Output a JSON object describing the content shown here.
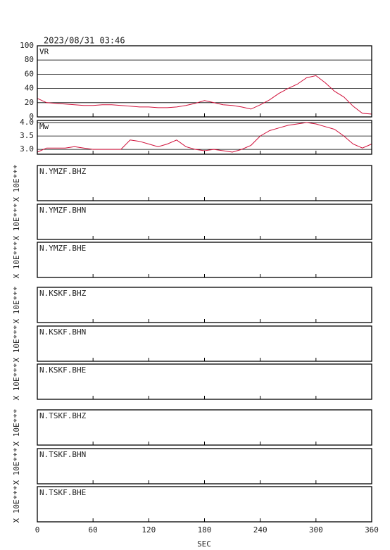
{
  "title": "2023/08/31 03:46",
  "x_axis": {
    "label": "SEC",
    "xlim": [
      0,
      360
    ],
    "xticks": [
      0,
      60,
      120,
      180,
      240,
      300,
      360
    ]
  },
  "chart_data": [
    {
      "type": "line",
      "label": "VR",
      "x": [
        0,
        10,
        20,
        30,
        40,
        50,
        60,
        70,
        80,
        90,
        100,
        110,
        120,
        130,
        140,
        150,
        160,
        170,
        180,
        190,
        200,
        210,
        220,
        230,
        240,
        250,
        260,
        270,
        280,
        290,
        300,
        310,
        320,
        330,
        340,
        350,
        360
      ],
      "series": [
        {
          "color": "#d0103a",
          "values": [
            26,
            20,
            19,
            18,
            17,
            16,
            16,
            17,
            17,
            16,
            15,
            14,
            14,
            13,
            13,
            14,
            16,
            19,
            23,
            20,
            17,
            16,
            14,
            11,
            17,
            24,
            33,
            40,
            46,
            55,
            58,
            48,
            36,
            28,
            15,
            5,
            4
          ]
        }
      ],
      "ylim": [
        0,
        100
      ],
      "yticks": [
        0,
        20,
        40,
        60,
        80,
        100
      ],
      "grid": true
    },
    {
      "type": "line",
      "label": "Mw",
      "x": [
        0,
        10,
        20,
        30,
        40,
        50,
        60,
        70,
        80,
        90,
        100,
        110,
        120,
        130,
        140,
        150,
        160,
        170,
        180,
        190,
        200,
        210,
        220,
        230,
        240,
        250,
        260,
        270,
        280,
        290,
        300,
        310,
        320,
        330,
        340,
        350,
        360
      ],
      "series": [
        {
          "color": "#d0103a",
          "values": [
            2.9,
            3.05,
            3.05,
            3.05,
            3.1,
            3.05,
            3.0,
            3.0,
            3.0,
            3.0,
            3.35,
            3.3,
            3.2,
            3.1,
            3.2,
            3.35,
            3.1,
            3.0,
            2.95,
            3.0,
            2.95,
            2.9,
            3.0,
            3.15,
            3.5,
            3.7,
            3.8,
            3.9,
            3.95,
            4.0,
            3.95,
            3.85,
            3.75,
            3.5,
            3.2,
            3.05,
            3.2
          ]
        }
      ],
      "ylim": [
        2.82,
        4.08
      ],
      "yticks": [
        {
          "value": 3,
          "label": "3.0"
        },
        3.5,
        {
          "value": 4,
          "label": "4.0"
        }
      ],
      "grid": true
    }
  ],
  "waveform_panels": [
    {
      "label": "N.YMZF.BHZ",
      "ylabel": "X 10E***"
    },
    {
      "label": "N.YMZF.BHN",
      "ylabel": "X 10E***"
    },
    {
      "label": "N.YMZF.BHE",
      "ylabel": "X 10E***"
    },
    {
      "label": "N.KSKF.BHZ",
      "ylabel": "X 10E***"
    },
    {
      "label": "N.KSKF.BHN",
      "ylabel": "X 10E***"
    },
    {
      "label": "N.KSKF.BHE",
      "ylabel": "X 10E***"
    },
    {
      "label": "N.TSKF.BHZ",
      "ylabel": "X 10E***"
    },
    {
      "label": "N.TSKF.BHN",
      "ylabel": "X 10E***"
    },
    {
      "label": "N.TSKF.BHE",
      "ylabel": "X 10E***"
    }
  ]
}
